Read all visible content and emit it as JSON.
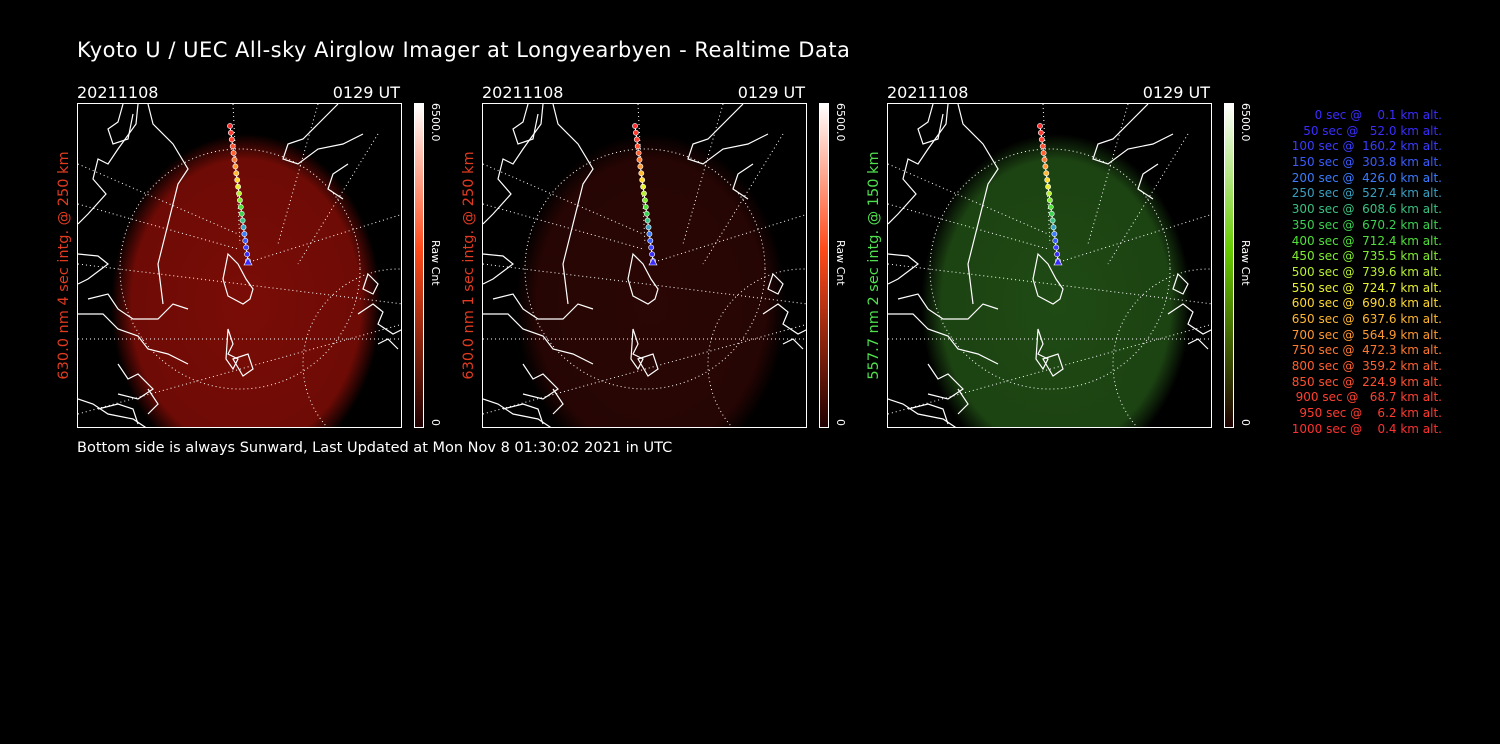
{
  "title": "Kyoto U / UEC All-sky Airglow Imager at Longyearbyen - Realtime Data",
  "footer": "Bottom side is always Sunward, Last Updated at Mon Nov  8 01:30:02 2021 in UTC",
  "panels": [
    {
      "date": "20211108",
      "time": "0129 UT",
      "label": "630.0 nm 4 sec intg. @ 250 km",
      "label_color": "#e03a20",
      "cbar_max": "6500.0",
      "cbar_min": "0",
      "cbar_unit": "Raw Cnt",
      "glow_color": "#7a0c06",
      "cbar_top": "#ff4a1a"
    },
    {
      "date": "20211108",
      "time": "0129 UT",
      "label": "630.0 nm 1 sec intg. @ 250 km",
      "label_color": "#e03a20",
      "cbar_max": "6500.0",
      "cbar_min": "0",
      "cbar_unit": "Raw Cnt",
      "glow_color": "#2a0604",
      "cbar_top": "#ff4a1a"
    },
    {
      "date": "20211108",
      "time": "0129 UT",
      "label": "557.7 nm 2 sec intg. @ 150 km",
      "label_color": "#4ee04e",
      "cbar_max": "6500.0",
      "cbar_min": "0",
      "cbar_unit": "Raw Cnt",
      "glow_color": "#1f4a14",
      "cbar_top": "#66cc00"
    }
  ],
  "legend": [
    {
      "text": "   0 sec @    0.1 km alt.",
      "color": "#3a2cff"
    },
    {
      "text": "  50 sec @   52.0 km alt.",
      "color": "#3a2cff"
    },
    {
      "text": " 100 sec @  160.2 km alt.",
      "color": "#3a3cff"
    },
    {
      "text": " 150 sec @  303.8 km alt.",
      "color": "#3a5cff"
    },
    {
      "text": " 200 sec @  426.0 km alt.",
      "color": "#3a7cff"
    },
    {
      "text": " 250 sec @  527.4 km alt.",
      "color": "#3aa0c0"
    },
    {
      "text": " 300 sec @  608.6 km alt.",
      "color": "#3ac080"
    },
    {
      "text": " 350 sec @  670.2 km alt.",
      "color": "#3ad050"
    },
    {
      "text": " 400 sec @  712.4 km alt.",
      "color": "#50e03a"
    },
    {
      "text": " 450 sec @  735.5 km alt.",
      "color": "#80ec30"
    },
    {
      "text": " 500 sec @  739.6 km alt.",
      "color": "#b8f030"
    },
    {
      "text": " 550 sec @  724.7 km alt.",
      "color": "#e8f030"
    },
    {
      "text": " 600 sec @  690.8 km alt.",
      "color": "#ffd830"
    },
    {
      "text": " 650 sec @  637.6 km alt.",
      "color": "#ffb830"
    },
    {
      "text": " 700 sec @  564.9 km alt.",
      "color": "#ff9830"
    },
    {
      "text": " 750 sec @  472.3 km alt.",
      "color": "#ff7830"
    },
    {
      "text": " 800 sec @  359.2 km alt.",
      "color": "#ff6030"
    },
    {
      "text": " 850 sec @  224.9 km alt.",
      "color": "#ff5030"
    },
    {
      "text": " 900 sec @   68.7 km alt.",
      "color": "#ff4030"
    },
    {
      "text": " 950 sec @    6.2 km alt.",
      "color": "#ff3a30"
    },
    {
      "text": "1000 sec @    0.4 km alt.",
      "color": "#ff3030"
    }
  ]
}
